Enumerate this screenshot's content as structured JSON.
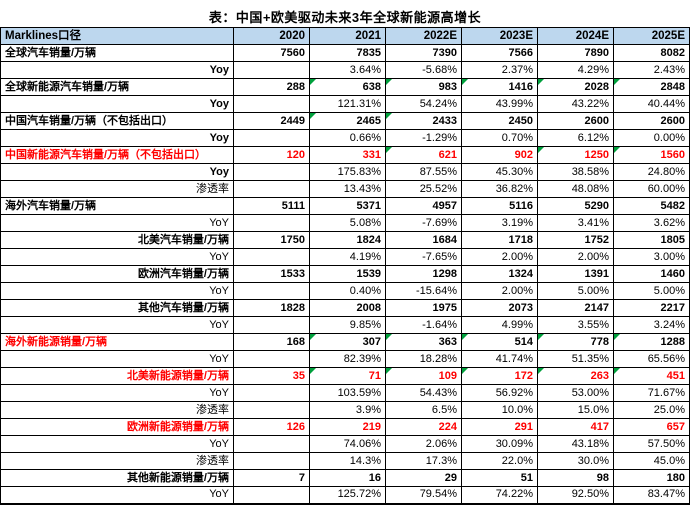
{
  "page": {
    "title": "表：中国+欧美驱动未来3年全球新能源高增长"
  },
  "colors": {
    "header_bg": "#BDD7EE",
    "accent_red": "#FF0000",
    "triangle_green": "#00A03C",
    "border": "#000000"
  },
  "chart_data": {
    "type": "table",
    "title": "表：中国+欧美驱动未来3年全球新能源高增长",
    "columns": [
      "Marklines口径",
      "2020",
      "2021",
      "2022E",
      "2023E",
      "2024E",
      "2025E"
    ],
    "rows": [
      {
        "label": "全球汽车销量/万辆",
        "align": "left",
        "bold": true,
        "red": false,
        "values": [
          "7560",
          "7835",
          "7390",
          "7566",
          "7890",
          "8082"
        ],
        "values_bold": true,
        "values_red": false,
        "triangles": []
      },
      {
        "label": "Yoy",
        "align": "right",
        "bold": true,
        "red": false,
        "values": [
          "",
          "3.64%",
          "-5.68%",
          "2.37%",
          "4.29%",
          "2.43%"
        ],
        "values_bold": false,
        "values_red": false,
        "triangles": []
      },
      {
        "label": "全球新能源汽车销量/万辆",
        "align": "left",
        "bold": true,
        "red": false,
        "values": [
          "288",
          "638",
          "983",
          "1416",
          "2028",
          "2848"
        ],
        "values_bold": true,
        "values_red": false,
        "triangles": [
          1,
          2,
          3,
          4,
          5
        ]
      },
      {
        "label": "Yoy",
        "align": "right",
        "bold": true,
        "red": false,
        "values": [
          "",
          "121.31%",
          "54.24%",
          "43.99%",
          "43.22%",
          "40.44%"
        ],
        "values_bold": false,
        "values_red": false,
        "triangles": []
      },
      {
        "label": "中国汽车销量/万辆（不包括出口）",
        "align": "left",
        "bold": true,
        "red": false,
        "values": [
          "2449",
          "2465",
          "2433",
          "2450",
          "2600",
          "2600"
        ],
        "values_bold": true,
        "values_red": false,
        "triangles": [
          1,
          2
        ]
      },
      {
        "label": "Yoy",
        "align": "right",
        "bold": true,
        "red": false,
        "values": [
          "",
          "0.66%",
          "-1.29%",
          "0.70%",
          "6.12%",
          "0.00%"
        ],
        "values_bold": false,
        "values_red": false,
        "triangles": []
      },
      {
        "label": "中国新能源汽车销量/万辆（不包括出口）",
        "align": "left",
        "bold": true,
        "red": true,
        "values": [
          "120",
          "331",
          "621",
          "902",
          "1250",
          "1560"
        ],
        "values_bold": true,
        "values_red": true,
        "triangles": [
          2,
          4,
          5
        ]
      },
      {
        "label": "Yoy",
        "align": "right",
        "bold": true,
        "red": false,
        "values": [
          "",
          "175.83%",
          "87.55%",
          "45.30%",
          "38.58%",
          "24.80%"
        ],
        "values_bold": false,
        "values_red": false,
        "triangles": []
      },
      {
        "label": "渗透率",
        "align": "right",
        "bold": false,
        "red": false,
        "values": [
          "",
          "13.43%",
          "25.52%",
          "36.82%",
          "48.08%",
          "60.00%"
        ],
        "values_bold": false,
        "values_red": false,
        "triangles": []
      },
      {
        "label": "海外汽车销量/万辆",
        "align": "left",
        "bold": true,
        "red": false,
        "values": [
          "5111",
          "5371",
          "4957",
          "5116",
          "5290",
          "5482"
        ],
        "values_bold": true,
        "values_red": false,
        "triangles": []
      },
      {
        "label": "YoY",
        "align": "right",
        "bold": false,
        "red": false,
        "values": [
          "",
          "5.08%",
          "-7.69%",
          "3.19%",
          "3.41%",
          "3.62%"
        ],
        "values_bold": false,
        "values_red": false,
        "triangles": []
      },
      {
        "label": "北美汽车销量/万辆",
        "align": "right",
        "bold": true,
        "red": false,
        "values": [
          "1750",
          "1824",
          "1684",
          "1718",
          "1752",
          "1805"
        ],
        "values_bold": true,
        "values_red": false,
        "triangles": []
      },
      {
        "label": "YoY",
        "align": "right",
        "bold": false,
        "red": false,
        "values": [
          "",
          "4.19%",
          "-7.65%",
          "2.00%",
          "2.00%",
          "3.00%"
        ],
        "values_bold": false,
        "values_red": false,
        "triangles": []
      },
      {
        "label": "欧洲汽车销量/万辆",
        "align": "right",
        "bold": true,
        "red": false,
        "values": [
          "1533",
          "1539",
          "1298",
          "1324",
          "1391",
          "1460"
        ],
        "values_bold": true,
        "values_red": false,
        "triangles": []
      },
      {
        "label": "YoY",
        "align": "right",
        "bold": false,
        "red": false,
        "values": [
          "",
          "0.40%",
          "-15.64%",
          "2.00%",
          "5.00%",
          "5.00%"
        ],
        "values_bold": false,
        "values_red": false,
        "triangles": []
      },
      {
        "label": "其他汽车销量/万辆",
        "align": "right",
        "bold": true,
        "red": false,
        "values": [
          "1828",
          "2008",
          "1975",
          "2073",
          "2147",
          "2217"
        ],
        "values_bold": true,
        "values_red": false,
        "triangles": []
      },
      {
        "label": "YoY",
        "align": "right",
        "bold": false,
        "red": false,
        "values": [
          "",
          "9.85%",
          "-1.64%",
          "4.99%",
          "3.55%",
          "3.24%"
        ],
        "values_bold": false,
        "values_red": false,
        "triangles": []
      },
      {
        "label": "海外新能源销量/万辆",
        "align": "left",
        "bold": true,
        "red": true,
        "values": [
          "168",
          "307",
          "363",
          "514",
          "778",
          "1288"
        ],
        "values_bold": true,
        "values_red": false,
        "triangles": [
          1,
          2,
          3,
          4,
          5
        ]
      },
      {
        "label": "YoY",
        "align": "right",
        "bold": false,
        "red": false,
        "values": [
          "",
          "82.39%",
          "18.28%",
          "41.74%",
          "51.35%",
          "65.56%"
        ],
        "values_bold": false,
        "values_red": false,
        "triangles": []
      },
      {
        "label": "北美新能源销量/万辆",
        "align": "right",
        "bold": true,
        "red": true,
        "values": [
          "35",
          "71",
          "109",
          "172",
          "263",
          "451"
        ],
        "values_bold": true,
        "values_red": true,
        "triangles": [
          1,
          2,
          3,
          4,
          5
        ]
      },
      {
        "label": "YoY",
        "align": "right",
        "bold": false,
        "red": false,
        "values": [
          "",
          "103.59%",
          "54.43%",
          "56.92%",
          "53.00%",
          "71.67%"
        ],
        "values_bold": false,
        "values_red": false,
        "triangles": []
      },
      {
        "label": "渗透率",
        "align": "right",
        "bold": false,
        "red": false,
        "values": [
          "",
          "3.9%",
          "6.5%",
          "10.0%",
          "15.0%",
          "25.0%"
        ],
        "values_bold": false,
        "values_red": false,
        "triangles": []
      },
      {
        "label": "欧洲新能源销量/万辆",
        "align": "right",
        "bold": true,
        "red": true,
        "values": [
          "126",
          "219",
          "224",
          "291",
          "417",
          "657"
        ],
        "values_bold": true,
        "values_red": true,
        "triangles": []
      },
      {
        "label": "YoY",
        "align": "right",
        "bold": false,
        "red": false,
        "values": [
          "",
          "74.06%",
          "2.06%",
          "30.09%",
          "43.18%",
          "57.50%"
        ],
        "values_bold": false,
        "values_red": false,
        "triangles": []
      },
      {
        "label": "渗透率",
        "align": "right",
        "bold": false,
        "red": false,
        "values": [
          "",
          "14.3%",
          "17.3%",
          "22.0%",
          "30.0%",
          "45.0%"
        ],
        "values_bold": false,
        "values_red": false,
        "triangles": []
      },
      {
        "label": "其他新能源销量/万辆",
        "align": "right",
        "bold": true,
        "red": false,
        "values": [
          "7",
          "16",
          "29",
          "51",
          "98",
          "180"
        ],
        "values_bold": true,
        "values_red": false,
        "triangles": []
      },
      {
        "label": "YoY",
        "align": "right",
        "bold": false,
        "red": false,
        "values": [
          "",
          "125.72%",
          "79.54%",
          "74.22%",
          "92.50%",
          "83.47%"
        ],
        "values_bold": false,
        "values_red": false,
        "triangles": []
      }
    ]
  }
}
